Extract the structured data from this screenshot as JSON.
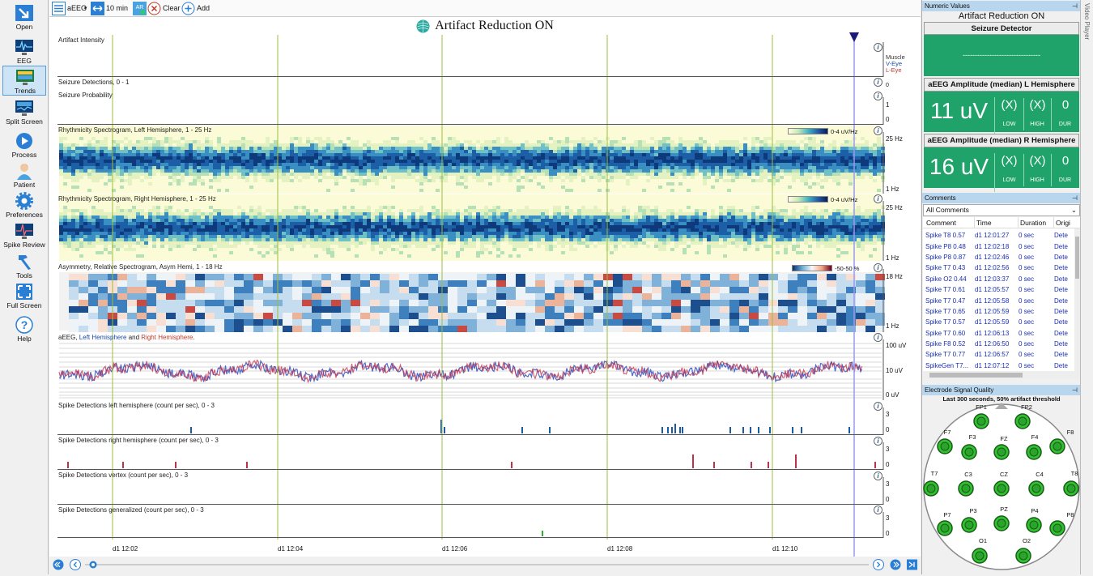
{
  "sidebar": {
    "items": [
      {
        "label": "Open",
        "icon": "open-icon"
      },
      {
        "label": "EEG",
        "icon": "eeg-icon"
      },
      {
        "label": "Trends",
        "icon": "trends-icon"
      },
      {
        "label": "Split Screen",
        "icon": "split-screen-icon"
      },
      {
        "label": "Process",
        "icon": "play-icon"
      },
      {
        "label": "Patient",
        "icon": "patient-icon"
      },
      {
        "label": "Preferences",
        "icon": "gear-icon"
      },
      {
        "label": "Spike Review",
        "icon": "spike-review-icon"
      },
      {
        "label": "Tools",
        "icon": "hammer-icon"
      },
      {
        "label": "Full Screen",
        "icon": "full-screen-icon"
      },
      {
        "label": "Help",
        "icon": "help-icon"
      }
    ]
  },
  "toolbar": {
    "aeeg_label": "aEEG",
    "duration_label": "10 min",
    "ar_label": "AR",
    "clear_label": "Clear",
    "add_label": "Add"
  },
  "main": {
    "title": "Artifact Reduction ON",
    "panels": {
      "artifact": {
        "label": "Artifact Intensity",
        "legend": [
          "Muscle",
          "V-Eye",
          "L-Eye"
        ]
      },
      "seizure_det": {
        "label": "Seizure Detections, 0 - 1",
        "ax_top": "1",
        "ax_bot": "0"
      },
      "seizure_prob": {
        "label": "Seizure Probability",
        "ax_top": "1",
        "ax_bot": "0"
      },
      "spec_left": {
        "label": "Rhythmicity Spectrogram, Left Hemisphere, 1 - 25 Hz",
        "scale": "0-4 uV/Hz",
        "ax_top": "25 Hz",
        "ax_bot": "1 Hz"
      },
      "spec_right": {
        "label": "Rhythmicity Spectrogram, Right Hemisphere, 1 - 25 Hz",
        "scale": "0-4 uV/Hz",
        "ax_top": "25 Hz",
        "ax_bot": "1 Hz"
      },
      "asym": {
        "label": "Asymmetry, Relative Spectrogram, Asym Hemi, 1 - 18 Hz",
        "scale": "-50-50 %",
        "ax_top": "18 Hz",
        "ax_bot": "1 Hz"
      },
      "aeeg": {
        "label_prefix": "aEEG, ",
        "label_left": "Left Hemisphere",
        "label_mid": " and ",
        "label_right": "Right Hemisphere",
        "label_suffix": ".",
        "ax_top": "100 uV",
        "ax_mid": "10 uV",
        "ax_bot": "0 uV"
      },
      "spike_left": {
        "label": "Spike Detections left hemisphere (count per sec), 0 - 3",
        "ax_top": "3",
        "ax_bot": "0"
      },
      "spike_right": {
        "label": "Spike Detections right hemisphere (count per sec), 0 - 3",
        "ax_top": "3",
        "ax_bot": "0"
      },
      "spike_vertex": {
        "label": "Spike Detections vertex (count per sec), 0 - 3",
        "ax_top": "3",
        "ax_bot": "0"
      },
      "spike_gen": {
        "label": "Spike Detections generalized (count per sec), 0 - 3",
        "ax_top": "3",
        "ax_bot": "0"
      }
    },
    "time_labels": [
      "d1 12:02",
      "d1 12:04",
      "d1 12:06",
      "d1 12:08",
      "d1 12:10"
    ]
  },
  "right": {
    "numeric_header": "Numeric Values",
    "ar_text": "Artifact Reduction ON",
    "seizure_detector": "Seizure Detector",
    "seizure_value": "--------------------------------",
    "left_amp": {
      "title": "aEEG Amplitude (median) L Hemisphere",
      "value": "11 uV",
      "low": "(X)",
      "high": "(X)",
      "dur": "0",
      "low_label": "LOW",
      "high_label": "HIGH",
      "dur_label": "DUR"
    },
    "right_amp": {
      "title": "aEEG Amplitude (median) R Hemisphere",
      "value": "16 uV",
      "low": "(X)",
      "high": "(X)",
      "dur": "0",
      "low_label": "LOW",
      "high_label": "HIGH",
      "dur_label": "DUR"
    },
    "comments_header": "Comments",
    "comments_filter": "All Comments",
    "comments_cols": [
      "Comment",
      "Time",
      "Duration",
      "Origi"
    ],
    "comments": [
      [
        "Spike T8 0.57",
        "d1 12:01:27",
        "0 sec",
        "Dete"
      ],
      [
        "Spike P8 0.48",
        "d1 12:02:18",
        "0 sec",
        "Dete"
      ],
      [
        "Spike P8 0.87",
        "d1 12:02:46",
        "0 sec",
        "Dete"
      ],
      [
        "Spike T7 0.43",
        "d1 12:02:56",
        "0 sec",
        "Dete"
      ],
      [
        "Spike O2 0.44",
        "d1 12:03:37",
        "0 sec",
        "Dete"
      ],
      [
        "Spike T7 0.61",
        "d1 12:05:57",
        "0 sec",
        "Dete"
      ],
      [
        "Spike T7 0.47",
        "d1 12:05:58",
        "0 sec",
        "Dete"
      ],
      [
        "Spike T7 0.65",
        "d1 12:05:59",
        "0 sec",
        "Dete"
      ],
      [
        "Spike T7 0.57",
        "d1 12:05:59",
        "0 sec",
        "Dete"
      ],
      [
        "Spike T7 0.60",
        "d1 12:06:13",
        "0 sec",
        "Dete"
      ],
      [
        "Spike F8 0.52",
        "d1 12:06:50",
        "0 sec",
        "Dete"
      ],
      [
        "Spike T7 0.77",
        "d1 12:06:57",
        "0 sec",
        "Dete"
      ],
      [
        "SpikeGen T7...",
        "d1 12:07:12",
        "0 sec",
        "Dete"
      ]
    ],
    "esq_header": "Electrode Signal Quality",
    "esq_sub": "Last 300 seconds, 50% artifact threshold",
    "electrodes": [
      "FP1",
      "FP2",
      "F7",
      "F3",
      "FZ",
      "F4",
      "F8",
      "T7",
      "C3",
      "CZ",
      "C4",
      "T8",
      "P7",
      "P3",
      "PZ",
      "P4",
      "P8",
      "O1",
      "O2"
    ],
    "video_tab": "Video Player"
  }
}
